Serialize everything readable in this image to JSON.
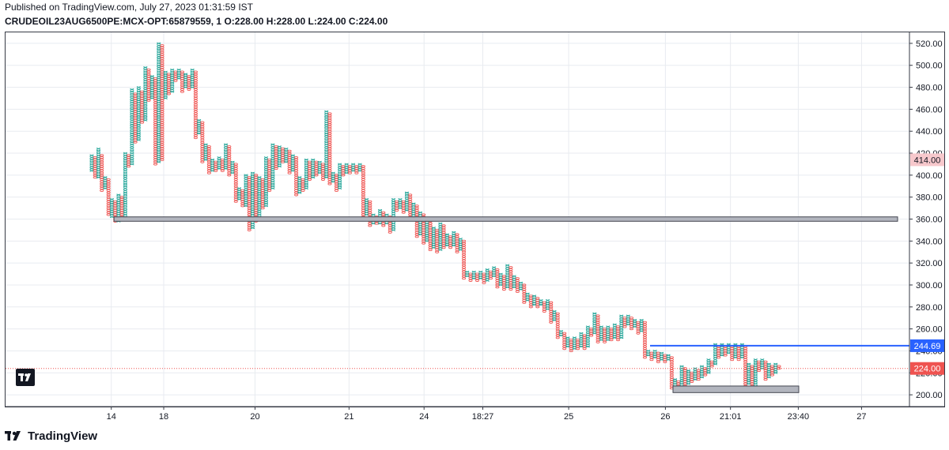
{
  "header": {
    "published": "Published on TradingView.com, July 27, 2023 01:31:59 IST",
    "symbol_line": "CRUDEOIL23AUG6500PE:MCX-OPT:65879559, 1  O:228.00  H:228.00  L:224.00  C:224.00"
  },
  "brand": {
    "name": "TradingView",
    "icon": "tradingview-logo-icon"
  },
  "colors": {
    "up": "#26a69a",
    "down": "#ef5350",
    "grid": "#e8ebf0",
    "support_fill": "#b2b5be",
    "support_stroke": "#434651",
    "hline": "#2962ff",
    "price_line": "#ef5350"
  },
  "chart_data": {
    "type": "point-and-figure",
    "ylim": [
      190,
      530
    ],
    "y_ticks": [
      200,
      220,
      240,
      260,
      280,
      300,
      320,
      340,
      360,
      380,
      400,
      420,
      440,
      460,
      480,
      500,
      520
    ],
    "y_tick_labels": [
      "200.00",
      "220.00",
      "240.00",
      "260.00",
      "280.00",
      "300.00",
      "320.00",
      "340.00",
      "360.00",
      "380.00",
      "400.00",
      "420.00",
      "440.00",
      "460.00",
      "480.00",
      "500.00",
      "520.00"
    ],
    "x_tick_labels": [
      "14",
      "18",
      "20",
      "21",
      "24",
      "18:27",
      "25",
      "26",
      "21:01",
      "23:40",
      "27"
    ],
    "columns": [
      {
        "t": "X",
        "lo": 404,
        "hi": 418
      },
      {
        "t": "O",
        "lo": 398,
        "hi": 416
      },
      {
        "t": "X",
        "lo": 398,
        "hi": 424
      },
      {
        "t": "O",
        "lo": 386,
        "hi": 418
      },
      {
        "t": "X",
        "lo": 388,
        "hi": 398
      },
      {
        "t": "O",
        "lo": 364,
        "hi": 396
      },
      {
        "t": "X",
        "lo": 362,
        "hi": 378
      },
      {
        "t": "O",
        "lo": 358,
        "hi": 376
      },
      {
        "t": "X",
        "lo": 358,
        "hi": 382
      },
      {
        "t": "O",
        "lo": 362,
        "hi": 380
      },
      {
        "t": "X",
        "lo": 362,
        "hi": 420
      },
      {
        "t": "O",
        "lo": 408,
        "hi": 418
      },
      {
        "t": "X",
        "lo": 410,
        "hi": 478
      },
      {
        "t": "O",
        "lo": 430,
        "hi": 474
      },
      {
        "t": "X",
        "lo": 432,
        "hi": 480
      },
      {
        "t": "O",
        "lo": 448,
        "hi": 476
      },
      {
        "t": "X",
        "lo": 450,
        "hi": 498
      },
      {
        "t": "O",
        "lo": 468,
        "hi": 496
      },
      {
        "t": "X",
        "lo": 470,
        "hi": 490
      },
      {
        "t": "O",
        "lo": 410,
        "hi": 488
      },
      {
        "t": "X",
        "lo": 412,
        "hi": 520
      },
      {
        "t": "O",
        "lo": 414,
        "hi": 518
      },
      {
        "t": "X",
        "lo": 470,
        "hi": 494
      },
      {
        "t": "O",
        "lo": 474,
        "hi": 492
      },
      {
        "t": "X",
        "lo": 476,
        "hi": 496
      },
      {
        "t": "O",
        "lo": 486,
        "hi": 494
      },
      {
        "t": "X",
        "lo": 488,
        "hi": 496
      },
      {
        "t": "O",
        "lo": 476,
        "hi": 494
      },
      {
        "t": "X",
        "lo": 480,
        "hi": 492
      },
      {
        "t": "O",
        "lo": 478,
        "hi": 490
      },
      {
        "t": "X",
        "lo": 480,
        "hi": 496
      },
      {
        "t": "O",
        "lo": 434,
        "hi": 494
      },
      {
        "t": "X",
        "lo": 438,
        "hi": 450
      },
      {
        "t": "O",
        "lo": 412,
        "hi": 448
      },
      {
        "t": "X",
        "lo": 414,
        "hi": 428
      },
      {
        "t": "O",
        "lo": 402,
        "hi": 426
      },
      {
        "t": "X",
        "lo": 404,
        "hi": 414
      },
      {
        "t": "O",
        "lo": 404,
        "hi": 412
      },
      {
        "t": "X",
        "lo": 406,
        "hi": 416
      },
      {
        "t": "O",
        "lo": 404,
        "hi": 414
      },
      {
        "t": "X",
        "lo": 406,
        "hi": 428
      },
      {
        "t": "O",
        "lo": 400,
        "hi": 426
      },
      {
        "t": "X",
        "lo": 402,
        "hi": 412
      },
      {
        "t": "O",
        "lo": 376,
        "hi": 410
      },
      {
        "t": "X",
        "lo": 378,
        "hi": 388
      },
      {
        "t": "O",
        "lo": 372,
        "hi": 386
      },
      {
        "t": "X",
        "lo": 372,
        "hi": 400
      },
      {
        "t": "O",
        "lo": 350,
        "hi": 398
      },
      {
        "t": "X",
        "lo": 352,
        "hi": 402
      },
      {
        "t": "O",
        "lo": 358,
        "hi": 400
      },
      {
        "t": "X",
        "lo": 360,
        "hi": 398
      },
      {
        "t": "O",
        "lo": 370,
        "hi": 396
      },
      {
        "t": "X",
        "lo": 372,
        "hi": 416
      },
      {
        "t": "O",
        "lo": 386,
        "hi": 414
      },
      {
        "t": "X",
        "lo": 388,
        "hi": 428
      },
      {
        "t": "O",
        "lo": 406,
        "hi": 426
      },
      {
        "t": "X",
        "lo": 408,
        "hi": 426
      },
      {
        "t": "O",
        "lo": 412,
        "hi": 424
      },
      {
        "t": "X",
        "lo": 412,
        "hi": 424
      },
      {
        "t": "O",
        "lo": 402,
        "hi": 422
      },
      {
        "t": "X",
        "lo": 404,
        "hi": 418
      },
      {
        "t": "O",
        "lo": 382,
        "hi": 416
      },
      {
        "t": "X",
        "lo": 384,
        "hi": 398
      },
      {
        "t": "O",
        "lo": 386,
        "hi": 396
      },
      {
        "t": "X",
        "lo": 388,
        "hi": 414
      },
      {
        "t": "O",
        "lo": 396,
        "hi": 412
      },
      {
        "t": "X",
        "lo": 398,
        "hi": 414
      },
      {
        "t": "O",
        "lo": 400,
        "hi": 412
      },
      {
        "t": "X",
        "lo": 402,
        "hi": 412
      },
      {
        "t": "O",
        "lo": 396,
        "hi": 410
      },
      {
        "t": "X",
        "lo": 398,
        "hi": 458
      },
      {
        "t": "O",
        "lo": 392,
        "hi": 456
      },
      {
        "t": "X",
        "lo": 394,
        "hi": 402
      },
      {
        "t": "O",
        "lo": 386,
        "hi": 400
      },
      {
        "t": "X",
        "lo": 388,
        "hi": 410
      },
      {
        "t": "O",
        "lo": 400,
        "hi": 408
      },
      {
        "t": "X",
        "lo": 402,
        "hi": 410
      },
      {
        "t": "O",
        "lo": 402,
        "hi": 408
      },
      {
        "t": "X",
        "lo": 404,
        "hi": 410
      },
      {
        "t": "O",
        "lo": 402,
        "hi": 408
      },
      {
        "t": "X",
        "lo": 404,
        "hi": 410
      },
      {
        "t": "O",
        "lo": 362,
        "hi": 408
      },
      {
        "t": "X",
        "lo": 364,
        "hi": 378
      },
      {
        "t": "O",
        "lo": 354,
        "hi": 376
      },
      {
        "t": "X",
        "lo": 356,
        "hi": 364
      },
      {
        "t": "O",
        "lo": 356,
        "hi": 362
      },
      {
        "t": "X",
        "lo": 356,
        "hi": 368
      },
      {
        "t": "O",
        "lo": 354,
        "hi": 366
      },
      {
        "t": "X",
        "lo": 356,
        "hi": 364
      },
      {
        "t": "O",
        "lo": 348,
        "hi": 362
      },
      {
        "t": "X",
        "lo": 350,
        "hi": 378
      },
      {
        "t": "O",
        "lo": 368,
        "hi": 376
      },
      {
        "t": "X",
        "lo": 370,
        "hi": 378
      },
      {
        "t": "O",
        "lo": 366,
        "hi": 376
      },
      {
        "t": "X",
        "lo": 368,
        "hi": 384
      },
      {
        "t": "O",
        "lo": 360,
        "hi": 382
      },
      {
        "t": "X",
        "lo": 362,
        "hi": 374
      },
      {
        "t": "O",
        "lo": 344,
        "hi": 372
      },
      {
        "t": "X",
        "lo": 346,
        "hi": 366
      },
      {
        "t": "O",
        "lo": 338,
        "hi": 364
      },
      {
        "t": "X",
        "lo": 340,
        "hi": 360
      },
      {
        "t": "O",
        "lo": 332,
        "hi": 358
      },
      {
        "t": "X",
        "lo": 334,
        "hi": 352
      },
      {
        "t": "O",
        "lo": 330,
        "hi": 350
      },
      {
        "t": "X",
        "lo": 332,
        "hi": 356
      },
      {
        "t": "O",
        "lo": 334,
        "hi": 354
      },
      {
        "t": "X",
        "lo": 336,
        "hi": 346
      },
      {
        "t": "O",
        "lo": 334,
        "hi": 344
      },
      {
        "t": "X",
        "lo": 336,
        "hi": 348
      },
      {
        "t": "O",
        "lo": 330,
        "hi": 346
      },
      {
        "t": "X",
        "lo": 332,
        "hi": 342
      },
      {
        "t": "O",
        "lo": 306,
        "hi": 340
      },
      {
        "t": "X",
        "lo": 308,
        "hi": 312
      },
      {
        "t": "O",
        "lo": 304,
        "hi": 310
      },
      {
        "t": "X",
        "lo": 306,
        "hi": 312
      },
      {
        "t": "O",
        "lo": 304,
        "hi": 310
      },
      {
        "t": "X",
        "lo": 306,
        "hi": 312
      },
      {
        "t": "O",
        "lo": 302,
        "hi": 310
      },
      {
        "t": "X",
        "lo": 304,
        "hi": 314
      },
      {
        "t": "O",
        "lo": 306,
        "hi": 312
      },
      {
        "t": "X",
        "lo": 308,
        "hi": 316
      },
      {
        "t": "O",
        "lo": 298,
        "hi": 314
      },
      {
        "t": "X",
        "lo": 300,
        "hi": 310
      },
      {
        "t": "O",
        "lo": 296,
        "hi": 308
      },
      {
        "t": "X",
        "lo": 298,
        "hi": 318
      },
      {
        "t": "O",
        "lo": 296,
        "hi": 316
      },
      {
        "t": "X",
        "lo": 298,
        "hi": 308
      },
      {
        "t": "O",
        "lo": 294,
        "hi": 306
      },
      {
        "t": "X",
        "lo": 296,
        "hi": 302
      },
      {
        "t": "O",
        "lo": 284,
        "hi": 300
      },
      {
        "t": "X",
        "lo": 286,
        "hi": 292
      },
      {
        "t": "O",
        "lo": 280,
        "hi": 290
      },
      {
        "t": "X",
        "lo": 282,
        "hi": 290
      },
      {
        "t": "O",
        "lo": 280,
        "hi": 288
      },
      {
        "t": "X",
        "lo": 282,
        "hi": 286
      },
      {
        "t": "O",
        "lo": 276,
        "hi": 284
      },
      {
        "t": "X",
        "lo": 278,
        "hi": 286
      },
      {
        "t": "O",
        "lo": 266,
        "hi": 284
      },
      {
        "t": "X",
        "lo": 268,
        "hi": 276
      },
      {
        "t": "O",
        "lo": 252,
        "hi": 274
      },
      {
        "t": "X",
        "lo": 254,
        "hi": 258
      },
      {
        "t": "O",
        "lo": 242,
        "hi": 256
      },
      {
        "t": "X",
        "lo": 244,
        "hi": 252
      },
      {
        "t": "O",
        "lo": 240,
        "hi": 250
      },
      {
        "t": "X",
        "lo": 242,
        "hi": 252
      },
      {
        "t": "O",
        "lo": 242,
        "hi": 250
      },
      {
        "t": "X",
        "lo": 244,
        "hi": 256
      },
      {
        "t": "O",
        "lo": 242,
        "hi": 254
      },
      {
        "t": "X",
        "lo": 244,
        "hi": 262
      },
      {
        "t": "O",
        "lo": 254,
        "hi": 260
      },
      {
        "t": "X",
        "lo": 256,
        "hi": 274
      },
      {
        "t": "O",
        "lo": 248,
        "hi": 272
      },
      {
        "t": "X",
        "lo": 250,
        "hi": 262
      },
      {
        "t": "O",
        "lo": 248,
        "hi": 260
      },
      {
        "t": "X",
        "lo": 250,
        "hi": 262
      },
      {
        "t": "O",
        "lo": 250,
        "hi": 260
      },
      {
        "t": "X",
        "lo": 252,
        "hi": 264
      },
      {
        "t": "O",
        "lo": 250,
        "hi": 262
      },
      {
        "t": "X",
        "lo": 252,
        "hi": 272
      },
      {
        "t": "O",
        "lo": 262,
        "hi": 270
      },
      {
        "t": "X",
        "lo": 264,
        "hi": 272
      },
      {
        "t": "O",
        "lo": 260,
        "hi": 270
      },
      {
        "t": "X",
        "lo": 262,
        "hi": 268
      },
      {
        "t": "O",
        "lo": 256,
        "hi": 266
      },
      {
        "t": "X",
        "lo": 258,
        "hi": 268
      },
      {
        "t": "O",
        "lo": 234,
        "hi": 266
      },
      {
        "t": "X",
        "lo": 236,
        "hi": 240
      },
      {
        "t": "O",
        "lo": 232,
        "hi": 238
      },
      {
        "t": "X",
        "lo": 234,
        "hi": 240
      },
      {
        "t": "O",
        "lo": 230,
        "hi": 238
      },
      {
        "t": "X",
        "lo": 232,
        "hi": 238
      },
      {
        "t": "O",
        "lo": 230,
        "hi": 236
      },
      {
        "t": "X",
        "lo": 232,
        "hi": 236
      },
      {
        "t": "O",
        "lo": 206,
        "hi": 234
      },
      {
        "t": "X",
        "lo": 208,
        "hi": 214
      },
      {
        "t": "O",
        "lo": 204,
        "hi": 212
      },
      {
        "t": "X",
        "lo": 206,
        "hi": 226
      },
      {
        "t": "O",
        "lo": 208,
        "hi": 224
      },
      {
        "t": "X",
        "lo": 210,
        "hi": 222
      },
      {
        "t": "O",
        "lo": 212,
        "hi": 220
      },
      {
        "t": "X",
        "lo": 214,
        "hi": 224
      },
      {
        "t": "O",
        "lo": 214,
        "hi": 222
      },
      {
        "t": "X",
        "lo": 216,
        "hi": 226
      },
      {
        "t": "O",
        "lo": 218,
        "hi": 224
      },
      {
        "t": "X",
        "lo": 220,
        "hi": 232
      },
      {
        "t": "O",
        "lo": 226,
        "hi": 230
      },
      {
        "t": "X",
        "lo": 228,
        "hi": 246
      },
      {
        "t": "O",
        "lo": 234,
        "hi": 244
      },
      {
        "t": "X",
        "lo": 236,
        "hi": 246
      },
      {
        "t": "O",
        "lo": 236,
        "hi": 244
      },
      {
        "t": "X",
        "lo": 238,
        "hi": 246
      },
      {
        "t": "O",
        "lo": 232,
        "hi": 244
      },
      {
        "t": "X",
        "lo": 234,
        "hi": 246
      },
      {
        "t": "O",
        "lo": 232,
        "hi": 244
      },
      {
        "t": "X",
        "lo": 234,
        "hi": 246
      },
      {
        "t": "O",
        "lo": 208,
        "hi": 244
      },
      {
        "t": "X",
        "lo": 210,
        "hi": 228
      },
      {
        "t": "O",
        "lo": 206,
        "hi": 226
      },
      {
        "t": "X",
        "lo": 208,
        "hi": 232
      },
      {
        "t": "O",
        "lo": 222,
        "hi": 230
      },
      {
        "t": "X",
        "lo": 224,
        "hi": 232
      },
      {
        "t": "O",
        "lo": 214,
        "hi": 230
      },
      {
        "t": "X",
        "lo": 216,
        "hi": 228
      },
      {
        "t": "O",
        "lo": 218,
        "hi": 226
      },
      {
        "t": "X",
        "lo": 220,
        "hi": 228
      },
      {
        "t": "O",
        "lo": 224,
        "hi": 226
      }
    ],
    "annotations": {
      "support_box_upper": {
        "price_low": 358,
        "price_high": 362,
        "x_from": 0.022,
        "x_to": 1.0
      },
      "support_box_lower": {
        "price_low": 202,
        "price_high": 208,
        "x_from": 0.738,
        "x_to": 0.883
      },
      "resistance_line": {
        "price": 244.69,
        "label": "244.69",
        "x_from": 0.712
      },
      "last_price": {
        "price": 224.0,
        "label": "224.00"
      },
      "marker_label": {
        "price": 414.0,
        "label": "414.00"
      }
    }
  }
}
